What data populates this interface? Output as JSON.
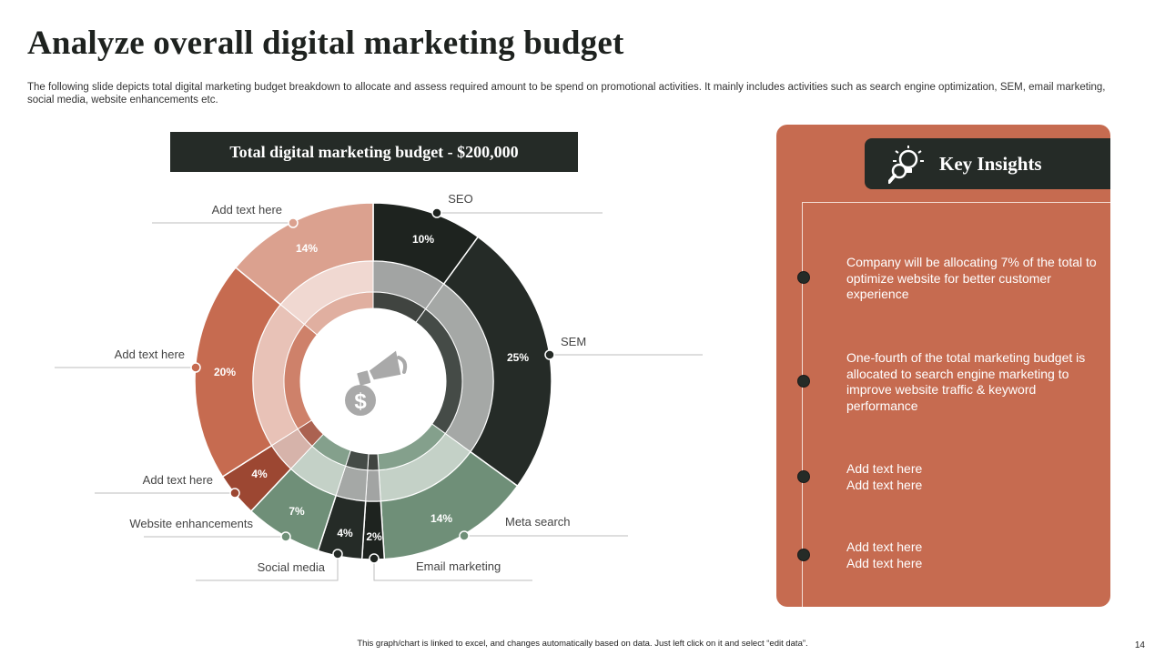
{
  "slide": {
    "title": "Analyze overall digital marketing budget",
    "subtitle": "The following slide depicts total digital marketing budget breakdown to allocate and assess required amount to be spend on promotional activities. It mainly includes  activities such as search engine optimization, SEM,  email marketing, social media, website enhancements etc.",
    "budget_banner": "Total digital marketing budget - $200,000",
    "footer_note": "This graph/chart is linked to excel, and changes automatically based on data. Just left click on it and select “edit data”.",
    "page_number": "14"
  },
  "icons": {
    "center": "megaphone-dollar-icon",
    "insights": "lightbulb-magnifier-icon"
  },
  "colors": {
    "dark": "#252b27",
    "terracotta": "#c66b50",
    "green": "#6f8f78",
    "salmon": "#dba18f",
    "brick": "#9c4732"
  },
  "chart_data": {
    "type": "pie",
    "variant": "donut",
    "unit": "%",
    "segments": [
      {
        "label": "SEO",
        "value": 10,
        "value_label": "10%",
        "color": "#1e231f"
      },
      {
        "label": "SEM",
        "value": 25,
        "value_label": "25%",
        "color": "#252b27"
      },
      {
        "label": "Meta search",
        "value": 14,
        "value_label": "14%",
        "color": "#6f8f78"
      },
      {
        "label": "Email marketing",
        "value": 2,
        "value_label": "2%",
        "color": "#1e231f"
      },
      {
        "label": "Social media",
        "value": 4,
        "value_label": "4%",
        "color": "#252b27"
      },
      {
        "label": "Website enhancements",
        "value": 7,
        "value_label": "7%",
        "color": "#6f8f78"
      },
      {
        "label": "Add text here",
        "value": 4,
        "value_label": "4%",
        "color": "#9c4732"
      },
      {
        "label": "Add text here",
        "value": 20,
        "value_label": "20%",
        "color": "#c66b50"
      },
      {
        "label": "Add text here",
        "value": 14,
        "value_label": "14%",
        "color": "#dba18f"
      }
    ]
  },
  "insights": {
    "title": "Key Insights",
    "items": [
      {
        "text": "Company will be allocating 7% of the total to optimize website for better customer experience"
      },
      {
        "text": "One-fourth of the total marketing budget is allocated to search engine marketing to improve website traffic & keyword performance"
      },
      {
        "text": "Add text here\nAdd text here"
      },
      {
        "text": "Add text here\nAdd text here"
      }
    ]
  }
}
